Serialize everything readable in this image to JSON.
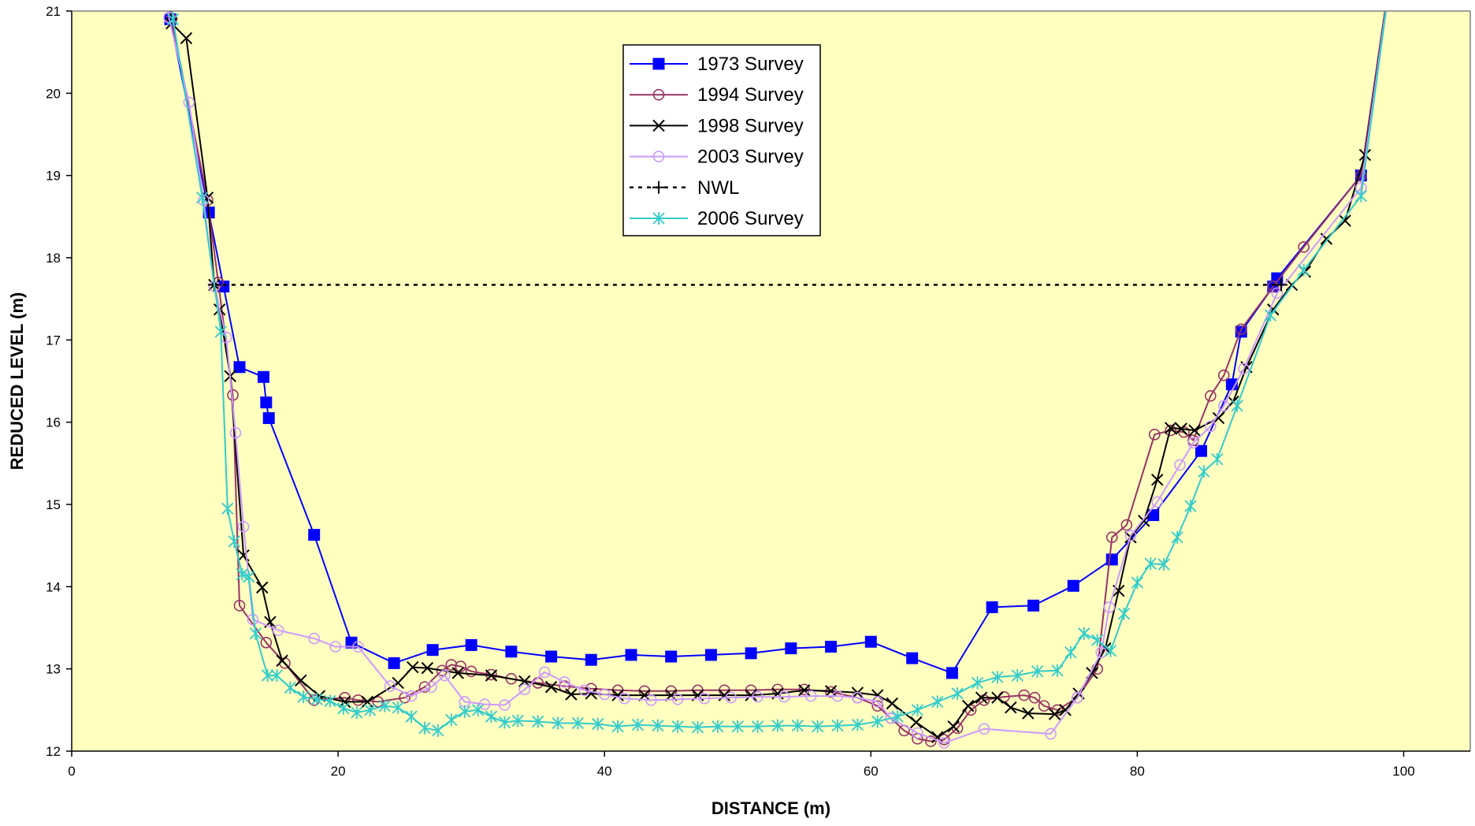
{
  "chart_data": {
    "type": "line",
    "title": "",
    "xlabel": "DISTANCE (m)",
    "ylabel": "REDUCED LEVEL (m)",
    "xlim": [
      0,
      105
    ],
    "ylim": [
      12,
      21
    ],
    "xticks": [
      0,
      20,
      40,
      60,
      80,
      100
    ],
    "yticks": [
      12,
      13,
      14,
      15,
      16,
      17,
      18,
      19,
      20,
      21
    ],
    "grid": false,
    "plot_background": "#FFFFC0",
    "legend_position": "top-center",
    "series": [
      {
        "name": "1973 Survey",
        "color": "#0000FF",
        "marker": "filled-square",
        "dash": "solid",
        "points": [
          [
            7,
            22
          ],
          [
            7.4,
            20.9
          ],
          [
            10.3,
            18.55
          ],
          [
            11.4,
            17.65
          ],
          [
            12.6,
            16.67
          ],
          [
            14.4,
            16.55
          ],
          [
            14.6,
            16.24
          ],
          [
            14.8,
            16.05
          ],
          [
            18.2,
            14.63
          ],
          [
            21,
            13.32
          ],
          [
            24.2,
            13.07
          ],
          [
            27.1,
            13.23
          ],
          [
            30,
            13.29
          ],
          [
            33,
            13.21
          ],
          [
            36,
            13.15
          ],
          [
            39,
            13.11
          ],
          [
            42,
            13.17
          ],
          [
            45,
            13.15
          ],
          [
            48,
            13.17
          ],
          [
            51,
            13.19
          ],
          [
            54,
            13.25
          ],
          [
            57,
            13.27
          ],
          [
            60,
            13.33
          ],
          [
            63.1,
            13.13
          ],
          [
            66.1,
            12.95
          ],
          [
            69.1,
            13.75
          ],
          [
            72.2,
            13.77
          ],
          [
            75.2,
            14.01
          ],
          [
            78.1,
            14.33
          ],
          [
            81.2,
            14.87
          ],
          [
            84.8,
            15.65
          ],
          [
            87.1,
            16.46
          ],
          [
            87.8,
            17.1
          ],
          [
            90.2,
            17.65
          ],
          [
            90.5,
            17.75
          ],
          [
            96.8,
            19
          ],
          [
            99.5,
            22
          ]
        ]
      },
      {
        "name": "1994 Survey",
        "color": "#993366",
        "marker": "open-circle",
        "dash": "solid",
        "points": [
          [
            7,
            22
          ],
          [
            7.5,
            20.9
          ],
          [
            10.2,
            18.7
          ],
          [
            11,
            17.7
          ],
          [
            12.1,
            16.33
          ],
          [
            12.6,
            13.77
          ],
          [
            14.6,
            13.32
          ],
          [
            16,
            13.07
          ],
          [
            18.2,
            12.62
          ],
          [
            20.5,
            12.65
          ],
          [
            21.5,
            12.62
          ],
          [
            23,
            12.6
          ],
          [
            25,
            12.65
          ],
          [
            26.5,
            12.78
          ],
          [
            27.8,
            12.98
          ],
          [
            28.5,
            13.05
          ],
          [
            29.2,
            13.03
          ],
          [
            30,
            12.97
          ],
          [
            31.5,
            12.93
          ],
          [
            33,
            12.88
          ],
          [
            35,
            12.83
          ],
          [
            37,
            12.79
          ],
          [
            39,
            12.76
          ],
          [
            41,
            12.74
          ],
          [
            43,
            12.73
          ],
          [
            45,
            12.73
          ],
          [
            47,
            12.74
          ],
          [
            49,
            12.74
          ],
          [
            51,
            12.74
          ],
          [
            53,
            12.75
          ],
          [
            55,
            12.75
          ],
          [
            57,
            12.72
          ],
          [
            59,
            12.65
          ],
          [
            60.5,
            12.55
          ],
          [
            61.5,
            12.4
          ],
          [
            62.5,
            12.25
          ],
          [
            63.5,
            12.15
          ],
          [
            64.5,
            12.12
          ],
          [
            65.5,
            12.14
          ],
          [
            66.5,
            12.28
          ],
          [
            67.5,
            12.5
          ],
          [
            68.5,
            12.62
          ],
          [
            70,
            12.66
          ],
          [
            71.5,
            12.68
          ],
          [
            72.3,
            12.65
          ],
          [
            73,
            12.55
          ],
          [
            74,
            12.5
          ],
          [
            75.5,
            12.65
          ],
          [
            77,
            13
          ],
          [
            78.1,
            14.6
          ],
          [
            79.2,
            14.75
          ],
          [
            81.3,
            15.85
          ],
          [
            82.5,
            15.9
          ],
          [
            83.5,
            15.88
          ],
          [
            84.2,
            15.78
          ],
          [
            85.5,
            16.32
          ],
          [
            86.5,
            16.57
          ],
          [
            87.8,
            17.13
          ],
          [
            90.2,
            17.65
          ],
          [
            92.5,
            18.13
          ],
          [
            96.8,
            19
          ],
          [
            99.5,
            22
          ]
        ]
      },
      {
        "name": "1998 Survey",
        "color": "#000000",
        "marker": "x",
        "dash": "solid",
        "points": [
          [
            7,
            22
          ],
          [
            7.5,
            20.85
          ],
          [
            8.6,
            20.67
          ],
          [
            10.2,
            18.73
          ],
          [
            10.7,
            17.67
          ],
          [
            11.1,
            17.37
          ],
          [
            11.9,
            16.56
          ],
          [
            12.9,
            14.38
          ],
          [
            14.3,
            13.99
          ],
          [
            14.9,
            13.57
          ],
          [
            15.8,
            13.1
          ],
          [
            17.2,
            12.86
          ],
          [
            18.6,
            12.67
          ],
          [
            20.5,
            12.6
          ],
          [
            22.2,
            12.6
          ],
          [
            24.5,
            12.83
          ],
          [
            25.6,
            13.02
          ],
          [
            26.7,
            13.01
          ],
          [
            29,
            12.95
          ],
          [
            31.5,
            12.92
          ],
          [
            34,
            12.85
          ],
          [
            36,
            12.78
          ],
          [
            37.5,
            12.69
          ],
          [
            39,
            12.7
          ],
          [
            41,
            12.68
          ],
          [
            43,
            12.68
          ],
          [
            45,
            12.68
          ],
          [
            47,
            12.68
          ],
          [
            49,
            12.68
          ],
          [
            51,
            12.68
          ],
          [
            53,
            12.7
          ],
          [
            55,
            12.74
          ],
          [
            57,
            12.73
          ],
          [
            59,
            12.71
          ],
          [
            60.5,
            12.68
          ],
          [
            61.6,
            12.58
          ],
          [
            63.4,
            12.35
          ],
          [
            65,
            12.17
          ],
          [
            66.2,
            12.3
          ],
          [
            67.3,
            12.55
          ],
          [
            68.3,
            12.65
          ],
          [
            69.5,
            12.65
          ],
          [
            70.5,
            12.53
          ],
          [
            71.8,
            12.46
          ],
          [
            73.8,
            12.45
          ],
          [
            74.6,
            12.5
          ],
          [
            75.6,
            12.7
          ],
          [
            76.6,
            12.95
          ],
          [
            77.6,
            13.25
          ],
          [
            78.6,
            13.95
          ],
          [
            79.5,
            14.6
          ],
          [
            80.5,
            14.8
          ],
          [
            81.5,
            15.3
          ],
          [
            82.5,
            15.93
          ],
          [
            83.3,
            15.92
          ],
          [
            84.3,
            15.9
          ],
          [
            86.1,
            16.05
          ],
          [
            87.2,
            16.25
          ],
          [
            88.2,
            16.67
          ],
          [
            90.2,
            17.37
          ],
          [
            91.6,
            17.67
          ],
          [
            92.6,
            17.83
          ],
          [
            94.2,
            18.23
          ],
          [
            95.6,
            18.45
          ],
          [
            97.1,
            19.25
          ],
          [
            99.5,
            22
          ]
        ]
      },
      {
        "name": "2003 Survey",
        "color": "#CC99FF",
        "marker": "open-circle",
        "dash": "solid",
        "points": [
          [
            7,
            22
          ],
          [
            7.3,
            20.92
          ],
          [
            8.8,
            19.89
          ],
          [
            9.9,
            18.7
          ],
          [
            10.7,
            17.65
          ],
          [
            11.6,
            17.03
          ],
          [
            12.3,
            15.87
          ],
          [
            12.9,
            14.73
          ],
          [
            13.6,
            13.6
          ],
          [
            15.5,
            13.47
          ],
          [
            18.2,
            13.37
          ],
          [
            19.8,
            13.27
          ],
          [
            21.5,
            13.27
          ],
          [
            23.9,
            12.79
          ],
          [
            25.5,
            12.67
          ],
          [
            27,
            12.78
          ],
          [
            28,
            12.92
          ],
          [
            29.5,
            12.6
          ],
          [
            31,
            12.57
          ],
          [
            32.5,
            12.56
          ],
          [
            34,
            12.75
          ],
          [
            35.5,
            12.96
          ],
          [
            37,
            12.84
          ],
          [
            38.5,
            12.74
          ],
          [
            40,
            12.69
          ],
          [
            41.5,
            12.64
          ],
          [
            43.5,
            12.62
          ],
          [
            45.5,
            12.63
          ],
          [
            47.5,
            12.64
          ],
          [
            49.5,
            12.65
          ],
          [
            51.5,
            12.66
          ],
          [
            53.5,
            12.66
          ],
          [
            55.5,
            12.67
          ],
          [
            57.5,
            12.67
          ],
          [
            59,
            12.65
          ],
          [
            60.5,
            12.6
          ],
          [
            61.5,
            12.4
          ],
          [
            63.5,
            12.22
          ],
          [
            65.5,
            12.1
          ],
          [
            68.5,
            12.27
          ],
          [
            73.5,
            12.21
          ],
          [
            75.5,
            12.65
          ],
          [
            77.3,
            13.2
          ],
          [
            77.9,
            13.75
          ],
          [
            79.5,
            14.62
          ],
          [
            81.5,
            15.03
          ],
          [
            83.2,
            15.48
          ],
          [
            84.2,
            15.75
          ],
          [
            85.5,
            15.95
          ],
          [
            86.5,
            16.2
          ],
          [
            88,
            16.65
          ],
          [
            90.5,
            17.57
          ],
          [
            96.8,
            18.85
          ],
          [
            99.5,
            22
          ]
        ]
      },
      {
        "name": "NWL",
        "color": "#000000",
        "marker": "plus",
        "dash": "dotted",
        "points": [
          [
            10.7,
            17.67
          ],
          [
            90.8,
            17.67
          ]
        ]
      },
      {
        "name": "2006 Survey",
        "color": "#33CCCC",
        "marker": "asterisk",
        "dash": "solid",
        "points": [
          [
            7,
            22
          ],
          [
            7.6,
            20.9
          ],
          [
            9.8,
            18.73
          ],
          [
            11.2,
            17.1
          ],
          [
            11.7,
            14.95
          ],
          [
            12.2,
            14.55
          ],
          [
            12.8,
            14.15
          ],
          [
            13.3,
            14.12
          ],
          [
            13.8,
            13.43
          ],
          [
            14.7,
            12.92
          ],
          [
            15.4,
            12.92
          ],
          [
            16.4,
            12.77
          ],
          [
            17.4,
            12.66
          ],
          [
            18.4,
            12.63
          ],
          [
            19.4,
            12.61
          ],
          [
            20.4,
            12.52
          ],
          [
            21.4,
            12.47
          ],
          [
            22.4,
            12.5
          ],
          [
            23.5,
            12.55
          ],
          [
            24.5,
            12.53
          ],
          [
            25.5,
            12.42
          ],
          [
            26.5,
            12.28
          ],
          [
            27.5,
            12.25
          ],
          [
            28.5,
            12.38
          ],
          [
            29.5,
            12.48
          ],
          [
            30.5,
            12.5
          ],
          [
            31.5,
            12.42
          ],
          [
            32.5,
            12.35
          ],
          [
            33.5,
            12.37
          ],
          [
            35,
            12.36
          ],
          [
            36.5,
            12.34
          ],
          [
            38,
            12.34
          ],
          [
            39.5,
            12.33
          ],
          [
            41,
            12.3
          ],
          [
            42.5,
            12.32
          ],
          [
            44,
            12.31
          ],
          [
            45.5,
            12.3
          ],
          [
            47,
            12.29
          ],
          [
            48.5,
            12.3
          ],
          [
            50,
            12.3
          ],
          [
            51.5,
            12.3
          ],
          [
            53,
            12.31
          ],
          [
            54.5,
            12.31
          ],
          [
            56,
            12.3
          ],
          [
            57.5,
            12.31
          ],
          [
            59,
            12.32
          ],
          [
            60.5,
            12.36
          ],
          [
            62,
            12.42
          ],
          [
            63.5,
            12.5
          ],
          [
            65,
            12.6
          ],
          [
            66.5,
            12.7
          ],
          [
            68,
            12.83
          ],
          [
            69.5,
            12.9
          ],
          [
            71,
            12.92
          ],
          [
            72.5,
            12.97
          ],
          [
            74,
            12.98
          ],
          [
            75,
            13.2
          ],
          [
            76,
            13.43
          ],
          [
            77,
            13.35
          ],
          [
            78,
            13.22
          ],
          [
            79,
            13.67
          ],
          [
            80,
            14.05
          ],
          [
            81,
            14.28
          ],
          [
            82,
            14.27
          ],
          [
            83,
            14.6
          ],
          [
            84,
            14.98
          ],
          [
            85,
            15.4
          ],
          [
            86,
            15.55
          ],
          [
            87.5,
            16.2
          ],
          [
            90,
            17.3
          ],
          [
            92.5,
            17.85
          ],
          [
            96.8,
            18.75
          ],
          [
            99.5,
            22
          ]
        ]
      }
    ]
  }
}
